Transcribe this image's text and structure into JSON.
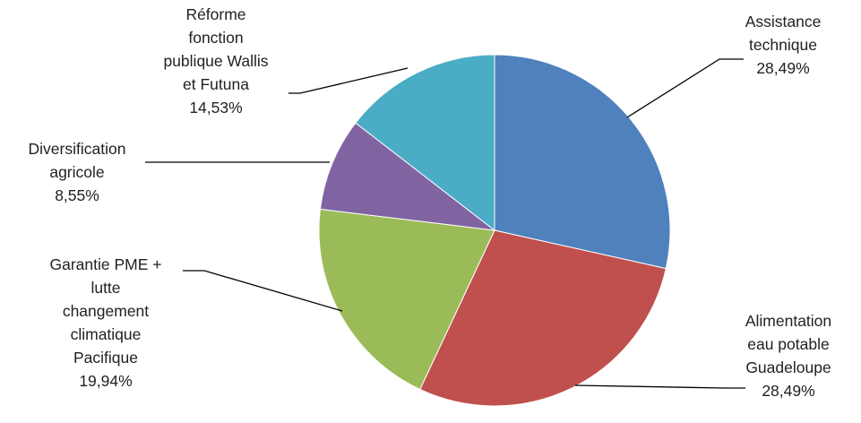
{
  "chart_data": {
    "type": "pie",
    "title": "",
    "slices": [
      {
        "label_lines": [
          "Assistance",
          "technique"
        ],
        "value_label": "28,49%",
        "value": 28.49,
        "color": "#4F81BD"
      },
      {
        "label_lines": [
          "Alimentation",
          "eau potable",
          "Guadeloupe"
        ],
        "value_label": "28,49%",
        "value": 28.49,
        "color": "#C0504D"
      },
      {
        "label_lines": [
          "Garantie PME +",
          "lutte",
          "changement",
          "climatique",
          "Pacifique"
        ],
        "value_label": "19,94%",
        "value": 19.94,
        "color": "#9BBB59"
      },
      {
        "label_lines": [
          "Diversification",
          "agricole"
        ],
        "value_label": "8,55%",
        "value": 8.55,
        "color": "#8064A2"
      },
      {
        "label_lines": [
          "Réforme",
          "fonction",
          "publique Wallis",
          "et Futuna"
        ],
        "value_label": "14,53%",
        "value": 14.53,
        "color": "#4BACC6"
      }
    ]
  }
}
